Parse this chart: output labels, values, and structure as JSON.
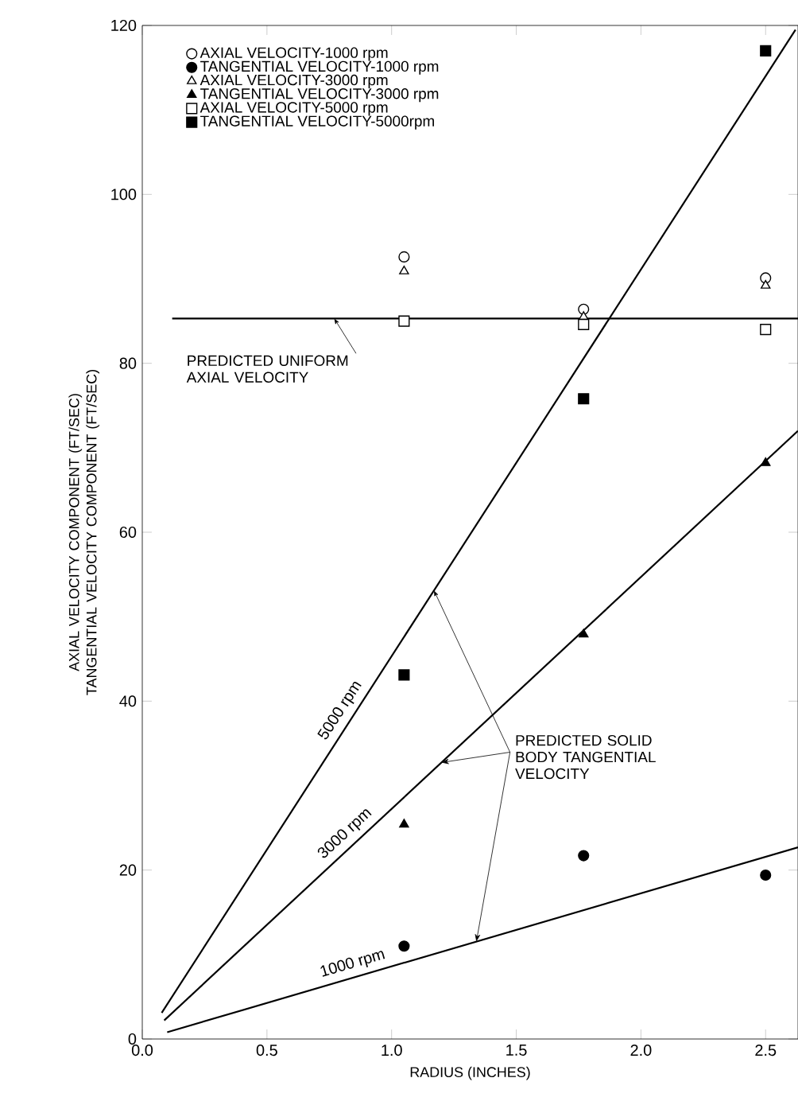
{
  "chart_data": {
    "type": "scatter",
    "xlabel": "RADIUS (INCHES)",
    "ylabel": "AXIAL VELOCITY COMPONENT (FT/SEC) TANGENTIAL VELOCITY COMPONENT (FT/SEC)",
    "xlim": [
      0,
      2.63
    ],
    "ylim": [
      0,
      120
    ],
    "xticks": [
      {
        "value": 0,
        "label": "0.0"
      },
      0.5,
      {
        "value": 1,
        "label": "1.0"
      },
      1.5,
      {
        "value": 2,
        "label": "2.0"
      },
      2.5
    ],
    "yticks": [
      0,
      20,
      40,
      60,
      80,
      100,
      120
    ],
    "x": [
      1.05,
      1.77,
      2.5
    ],
    "legend": "top left",
    "series": [
      {
        "name": "AXIAL VELOCITY-1000 rpm",
        "color": "#000000",
        "marker": "circle",
        "values": [
          92.6,
          86.4,
          90.1
        ]
      },
      {
        "name": "TANGENTIAL VELOCITY-1000 rpm",
        "color": "#000000",
        "marker": "circle",
        "values": [
          11.0,
          21.7,
          19.4
        ]
      },
      {
        "name": "AXIAL VELOCITY-3000 rpm",
        "color": "#000000",
        "marker": "triangle",
        "values": [
          90.9,
          85.5,
          89.2
        ]
      },
      {
        "name": "TANGENTIAL VELOCITY-3000 rpm",
        "color": "#000000",
        "marker": "triangle",
        "values": [
          25.4,
          47.9,
          68.2
        ]
      },
      {
        "name": "AXIAL VELOCITY-5000 rpm",
        "color": "#000000",
        "marker": "square",
        "values": [
          85.0,
          84.6,
          84.0
        ]
      },
      {
        "name": "TANGENTIAL VELOCITY-5000rpm",
        "color": "#000000",
        "marker": "square",
        "values": [
          43.1,
          75.8,
          117.0
        ]
      },
      {
        "name": "5000 rpm",
        "type": "line",
        "color": "#000000",
        "x": [
          0.078,
          2.62
        ],
        "values": [
          3.1,
          119.5
        ]
      },
      {
        "name": "3000 rpm",
        "type": "line",
        "color": "#000000",
        "x": [
          0.088,
          2.63
        ],
        "values": [
          2.2,
          72.0
        ]
      },
      {
        "name": "1000 rpm",
        "type": "line",
        "color": "#000000",
        "x": [
          0.1,
          2.63
        ],
        "values": [
          0.8,
          22.7
        ]
      }
    ],
    "ref_lines": [
      {
        "axis": "y",
        "value": 85.3,
        "label": "PREDICTED UNIFORM AXIAL VELOCITY",
        "color": "#000000"
      }
    ],
    "annotations": [
      {
        "text": "PREDICTED SOLID BODY TANGENTIAL VELOCITY",
        "x": 1.17,
        "y": 53.1
      }
    ]
  }
}
